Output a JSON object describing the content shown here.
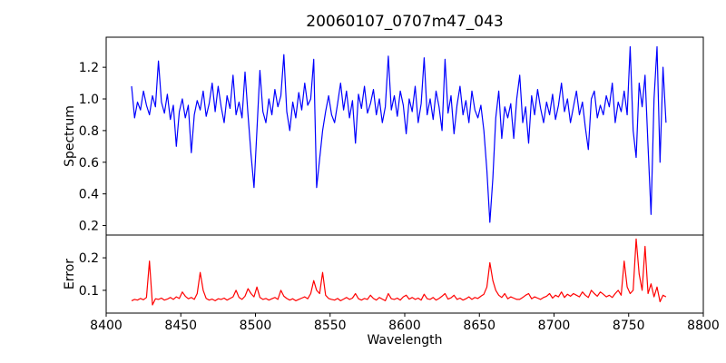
{
  "figure": {
    "background": "#ffffff",
    "spine_color": "#000000"
  },
  "chart_data": [
    {
      "type": "line",
      "title": "20060107_0707m47_043",
      "ylabel": "Spectrum",
      "xlabel": "",
      "legend": "none",
      "grid": false,
      "xlim": [
        8400,
        8800
      ],
      "ylim": [
        0.14,
        1.39
      ],
      "yticks": [
        0.2,
        0.4,
        0.6,
        0.8,
        1.0,
        1.2
      ],
      "series": [
        {
          "name": "spectrum",
          "color": "#0000ff",
          "x_start": 8417,
          "x_step": 2,
          "values": [
            1.08,
            0.88,
            0.98,
            0.93,
            1.05,
            0.96,
            0.9,
            1.02,
            0.95,
            1.24,
            0.98,
            0.91,
            1.03,
            0.87,
            0.96,
            0.7,
            0.92,
            1.0,
            0.88,
            0.96,
            0.66,
            0.9,
            0.99,
            0.93,
            1.05,
            0.89,
            0.97,
            1.1,
            0.92,
            1.08,
            0.95,
            0.85,
            1.02,
            0.94,
            1.15,
            0.9,
            0.98,
            0.88,
            1.17,
            0.9,
            0.65,
            0.44,
            0.8,
            1.18,
            0.92,
            0.85,
            1.0,
            0.9,
            1.06,
            0.95,
            1.02,
            1.28,
            0.92,
            0.8,
            0.98,
            0.88,
            1.04,
            0.93,
            1.1,
            0.96,
            1.0,
            1.25,
            0.44,
            0.62,
            0.8,
            0.92,
            1.02,
            0.9,
            0.85,
            0.97,
            1.1,
            0.93,
            1.05,
            0.88,
            0.99,
            0.72,
            1.03,
            0.94,
            1.08,
            0.91,
            0.97,
            1.06,
            0.9,
            1.0,
            0.85,
            0.95,
            1.27,
            0.93,
            1.02,
            0.89,
            1.05,
            0.96,
            0.78,
            1.0,
            0.92,
            1.08,
            0.85,
            0.97,
            1.26,
            0.9,
            1.0,
            0.87,
            1.05,
            0.95,
            0.8,
            1.25,
            0.91,
            1.02,
            0.78,
            0.96,
            1.08,
            0.9,
            0.99,
            0.85,
            1.05,
            0.93,
            0.88,
            0.96,
            0.8,
            0.55,
            0.22,
            0.5,
            0.88,
            1.05,
            0.75,
            0.95,
            0.88,
            0.97,
            0.75,
            1.0,
            1.15,
            0.85,
            0.95,
            0.72,
            1.02,
            0.9,
            1.06,
            0.94,
            0.85,
            0.98,
            0.9,
            1.03,
            0.87,
            0.96,
            1.1,
            0.92,
            1.0,
            0.85,
            0.95,
            1.05,
            0.9,
            0.98,
            0.82,
            0.68,
            1.0,
            1.05,
            0.88,
            0.96,
            0.9,
            1.02,
            0.95,
            1.1,
            0.85,
            0.98,
            0.92,
            1.05,
            0.9,
            1.33,
            0.8,
            0.63,
            1.1,
            0.95,
            1.15,
            0.7,
            0.27,
            1.0,
            1.33,
            0.6,
            1.2,
            0.85
          ]
        }
      ]
    },
    {
      "type": "line",
      "title": "",
      "ylabel": "Error",
      "xlabel": "Wavelength",
      "legend": "none",
      "grid": false,
      "xlim": [
        8400,
        8800
      ],
      "ylim": [
        0.03,
        0.27
      ],
      "yticks": [
        0.1,
        0.2
      ],
      "xticks": [
        8400,
        8450,
        8500,
        8550,
        8600,
        8650,
        8700,
        8750,
        8800
      ],
      "series": [
        {
          "name": "error",
          "color": "#ff0000",
          "x_start": 8417,
          "x_step": 2,
          "values": [
            0.068,
            0.072,
            0.07,
            0.075,
            0.071,
            0.078,
            0.19,
            0.055,
            0.074,
            0.072,
            0.076,
            0.07,
            0.073,
            0.078,
            0.072,
            0.08,
            0.075,
            0.095,
            0.082,
            0.074,
            0.078,
            0.072,
            0.09,
            0.155,
            0.1,
            0.075,
            0.07,
            0.073,
            0.068,
            0.074,
            0.072,
            0.076,
            0.07,
            0.075,
            0.08,
            0.1,
            0.078,
            0.072,
            0.082,
            0.105,
            0.09,
            0.08,
            0.11,
            0.078,
            0.072,
            0.075,
            0.07,
            0.074,
            0.078,
            0.072,
            0.1,
            0.082,
            0.075,
            0.07,
            0.074,
            0.068,
            0.072,
            0.076,
            0.08,
            0.074,
            0.09,
            0.13,
            0.1,
            0.09,
            0.155,
            0.085,
            0.075,
            0.072,
            0.07,
            0.075,
            0.068,
            0.073,
            0.078,
            0.072,
            0.076,
            0.09,
            0.074,
            0.07,
            0.075,
            0.072,
            0.085,
            0.075,
            0.07,
            0.078,
            0.073,
            0.068,
            0.09,
            0.074,
            0.072,
            0.076,
            0.07,
            0.08,
            0.085,
            0.073,
            0.078,
            0.072,
            0.076,
            0.07,
            0.088,
            0.074,
            0.072,
            0.078,
            0.07,
            0.075,
            0.082,
            0.09,
            0.073,
            0.077,
            0.085,
            0.072,
            0.076,
            0.07,
            0.074,
            0.08,
            0.072,
            0.078,
            0.075,
            0.082,
            0.088,
            0.11,
            0.185,
            0.13,
            0.1,
            0.085,
            0.078,
            0.09,
            0.074,
            0.08,
            0.076,
            0.072,
            0.072,
            0.078,
            0.085,
            0.09,
            0.074,
            0.08,
            0.076,
            0.072,
            0.078,
            0.082,
            0.09,
            0.076,
            0.085,
            0.08,
            0.095,
            0.078,
            0.088,
            0.082,
            0.09,
            0.085,
            0.08,
            0.095,
            0.085,
            0.078,
            0.1,
            0.09,
            0.082,
            0.095,
            0.088,
            0.08,
            0.085,
            0.078,
            0.09,
            0.1,
            0.085,
            0.19,
            0.11,
            0.09,
            0.1,
            0.258,
            0.15,
            0.1,
            0.235,
            0.09,
            0.12,
            0.08,
            0.11,
            0.065,
            0.085,
            0.08
          ]
        }
      ]
    }
  ]
}
